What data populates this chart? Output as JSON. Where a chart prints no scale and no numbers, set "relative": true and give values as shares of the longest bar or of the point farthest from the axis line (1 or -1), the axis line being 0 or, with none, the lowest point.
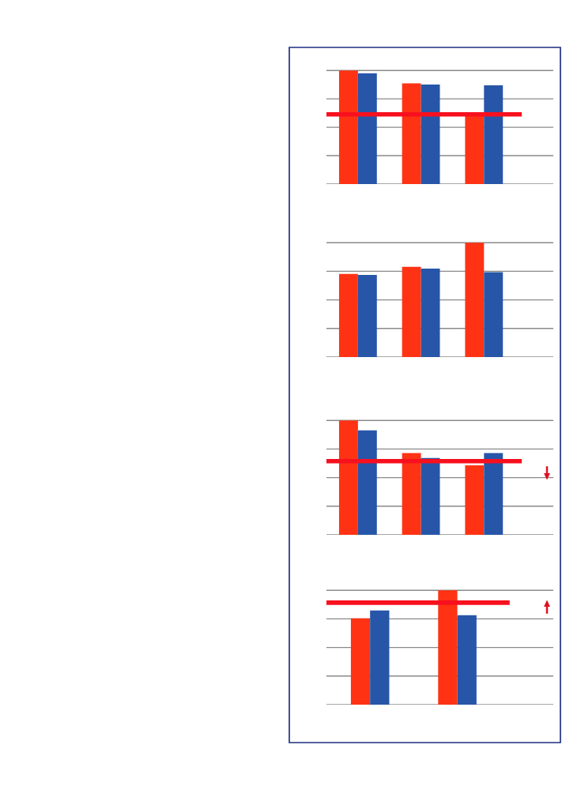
{
  "chart_data": [
    {
      "type": "bar",
      "relative": true,
      "categories": [
        null,
        null,
        null
      ],
      "grid": "y",
      "series": [
        {
          "color": "#ff3314",
          "values": [
            1,
            0.886,
            0.608
          ]
        },
        {
          "color": "#2756a8",
          "values": [
            0.975,
            0.877,
            0.869
          ]
        }
      ],
      "ref_lines": [
        {
          "axis": "y",
          "value": 0.613,
          "color": "#f8101e"
        }
      ]
    },
    {
      "type": "bar",
      "relative": true,
      "categories": [
        null,
        null,
        null
      ],
      "grid": "y",
      "series": [
        {
          "color": "#ff3314",
          "values": [
            0.727,
            0.79,
            1
          ]
        },
        {
          "color": "#2756a8",
          "values": [
            0.719,
            0.774,
            0.743
          ]
        }
      ]
    },
    {
      "type": "bar",
      "relative": true,
      "categories": [
        null,
        null,
        null
      ],
      "grid": "y",
      "series": [
        {
          "color": "#ff3314",
          "values": [
            1,
            0.715,
            0.608
          ]
        },
        {
          "color": "#2756a8",
          "values": [
            0.914,
            0.672,
            0.715
          ]
        }
      ],
      "ref_lines": [
        {
          "axis": "y",
          "value": 0.644,
          "color": "#f8101e"
        }
      ]
    },
    {
      "type": "bar",
      "relative": true,
      "categories": [
        null,
        null
      ],
      "grid": "y",
      "series": [
        {
          "color": "#ff3314",
          "values": [
            0.754,
            1
          ]
        },
        {
          "color": "#2756a8",
          "values": [
            0.824,
            0.782
          ]
        }
      ],
      "ref_lines": [
        {
          "axis": "y",
          "value": 0.892,
          "color": "#f8101e"
        }
      ]
    }
  ]
}
